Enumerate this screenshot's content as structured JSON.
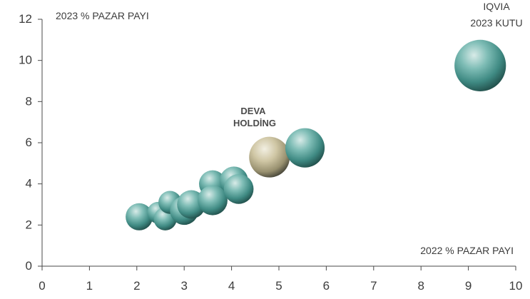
{
  "chart_data": {
    "type": "scatter",
    "xlabel": "2022 % PAZAR PAYI",
    "ylabel": "2023 % PAZAR PAYI",
    "xlim": [
      0,
      10
    ],
    "ylim": [
      0,
      12
    ],
    "xticks": [
      "0",
      "1",
      "2",
      "3",
      "4",
      "5",
      "6",
      "7",
      "8",
      "9",
      "10"
    ],
    "yticks": [
      "0",
      "2",
      "4",
      "6",
      "8",
      "10",
      "12"
    ],
    "size_legend": [
      "IQVIA",
      "2023 KUTU"
    ],
    "highlight_label": [
      "DEVA",
      "HOLDİNG"
    ],
    "grid": false,
    "colors": {
      "company": "#4f9a93",
      "highlight": "#bdb38d",
      "axis": "#4a4a4a"
    },
    "points": [
      {
        "x": 2.05,
        "y": 2.4,
        "size": 1.0
      },
      {
        "x": 2.45,
        "y": 2.6,
        "size": 0.8
      },
      {
        "x": 2.6,
        "y": 2.3,
        "size": 0.85
      },
      {
        "x": 2.7,
        "y": 3.1,
        "size": 0.85
      },
      {
        "x": 3.0,
        "y": 2.7,
        "size": 1.05
      },
      {
        "x": 3.15,
        "y": 3.0,
        "size": 1.05
      },
      {
        "x": 3.6,
        "y": 4.0,
        "size": 1.0
      },
      {
        "x": 4.05,
        "y": 4.15,
        "size": 1.05
      },
      {
        "x": 3.6,
        "y": 3.2,
        "size": 1.1
      },
      {
        "x": 4.15,
        "y": 3.75,
        "size": 1.1
      },
      {
        "x": 4.8,
        "y": 5.3,
        "size": 1.5,
        "highlight": true
      },
      {
        "x": 5.55,
        "y": 5.75,
        "size": 1.45
      },
      {
        "x": 9.25,
        "y": 9.75,
        "size": 1.9
      }
    ]
  }
}
